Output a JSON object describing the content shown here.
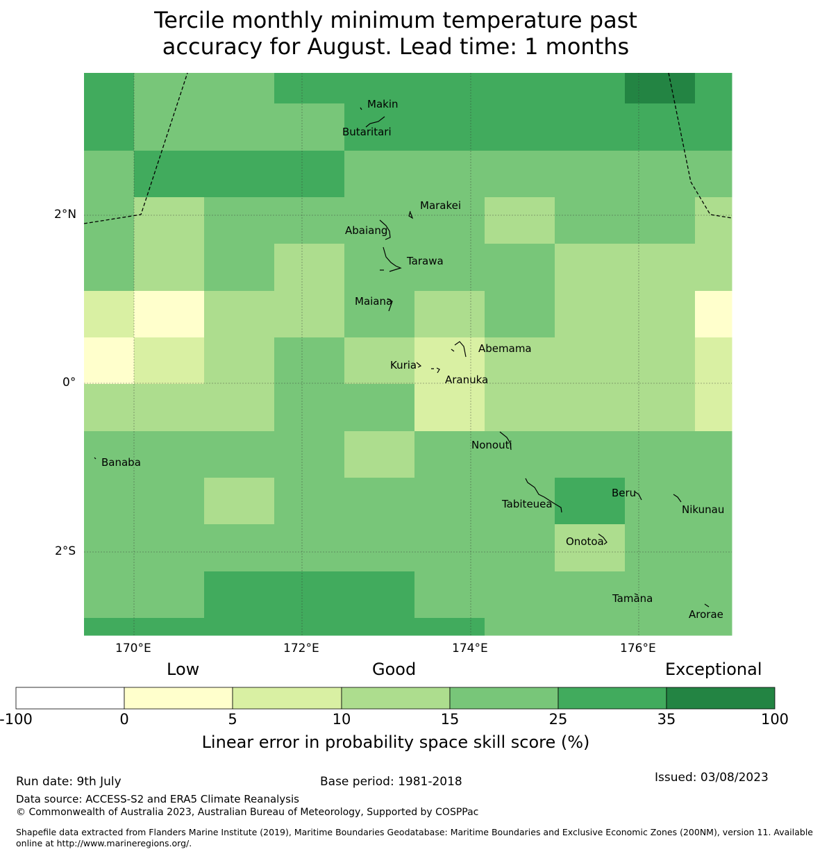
{
  "title_line1": "Tercile monthly minimum temperature past",
  "title_line2": "accuracy for August. Lead time: 1 months",
  "map": {
    "palette": {
      "0": "#ffffcc",
      "1": "#d9f0a3",
      "2": "#addd8e",
      "3": "#78c679",
      "4": "#41ab5d",
      "5": "#238443"
    },
    "lon_ticks": [
      "170°E",
      "172°E",
      "174°E",
      "176°E"
    ],
    "lat_ticks": [
      "2°N",
      "0°",
      "2°S"
    ],
    "places": [
      {
        "name": "Makin"
      },
      {
        "name": "Butaritari"
      },
      {
        "name": "Marakei"
      },
      {
        "name": "Abaiang"
      },
      {
        "name": "Tarawa"
      },
      {
        "name": "Maiana"
      },
      {
        "name": "Abemama"
      },
      {
        "name": "Kuria"
      },
      {
        "name": "Aranuka"
      },
      {
        "name": "Nonouti"
      },
      {
        "name": "Banaba"
      },
      {
        "name": "Tabiteuea"
      },
      {
        "name": "Beru"
      },
      {
        "name": "Nikunau"
      },
      {
        "name": "Onotoa"
      },
      {
        "name": "Tamana"
      },
      {
        "name": "Arorae"
      }
    ]
  },
  "colorbar": {
    "categories": [
      "Low",
      "Good",
      "Exceptional"
    ],
    "boundaries": [
      "-100",
      "0",
      "5",
      "10",
      "15",
      "25",
      "35",
      "100"
    ],
    "colors": [
      "#ffffff",
      "#ffffcc",
      "#d9f0a3",
      "#addd8e",
      "#78c679",
      "#41ab5d",
      "#238443"
    ],
    "label": "Linear error in probability space skill score (%)"
  },
  "footer": {
    "run_date": "Run date: 9th July",
    "base_period": "Base period: 1981-2018",
    "issued": "Issued: 03/08/2023",
    "data_source": "Data source: ACCESS-S2 and ERA5 Climate Reanalysis",
    "copyright": "© Commonwealth of Australia 2023, Australian Bureau of Meteorology, Supported by COSPPac",
    "shapefile_line1": "Shapefile data extracted from Flanders Marine Institute (2019), Maritime Boundaries Geodatabase: Maritime Boundaries and Exclusive Economic Zones (200NM), version 11. Available",
    "shapefile_line2": "online at http://www.marineregions.org/."
  }
}
